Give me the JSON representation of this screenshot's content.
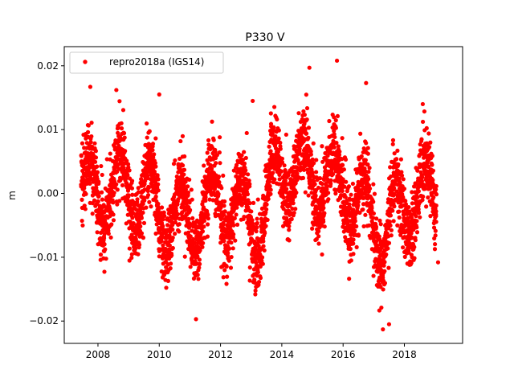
{
  "chart_data": {
    "type": "scatter",
    "title": "P330 V",
    "xlabel": "",
    "ylabel": "m",
    "xlim": [
      2006.9,
      2019.9
    ],
    "ylim": [
      -0.0235,
      0.023
    ],
    "x_ticks": [
      2008,
      2010,
      2012,
      2014,
      2016,
      2018
    ],
    "x_tick_labels": [
      "2008",
      "2010",
      "2012",
      "2014",
      "2016",
      "2018"
    ],
    "y_ticks": [
      -0.02,
      -0.01,
      0.0,
      0.01,
      0.02
    ],
    "y_tick_labels": [
      "−0.02",
      "−0.01",
      "0.00",
      "0.01",
      "0.02"
    ],
    "grid": false,
    "legend_position": "top-left",
    "series": [
      {
        "name": "repro2018a (IGS14)",
        "color": "#ff0000",
        "marker": "circle",
        "x_start": 2007.45,
        "x_end": 2019.05,
        "points_per_year": 330,
        "seasonal_amplitude": 0.0055,
        "seasonal_peak_fraction": 0.7,
        "noise_sd": 0.0028,
        "baseline_anchors": [
          [
            2007.45,
            0.0
          ],
          [
            2009.0,
            0.001
          ],
          [
            2010.3,
            -0.004
          ],
          [
            2011.0,
            -0.004
          ],
          [
            2012.0,
            -0.001
          ],
          [
            2013.3,
            -0.005
          ],
          [
            2013.9,
            0.004
          ],
          [
            2015.0,
            0.003
          ],
          [
            2016.0,
            0.001
          ],
          [
            2017.3,
            -0.006
          ],
          [
            2018.5,
            0.0
          ],
          [
            2019.05,
            -0.001
          ]
        ],
        "outliers": [
          [
            2007.75,
            0.0167
          ],
          [
            2008.6,
            0.0162
          ],
          [
            2010.0,
            0.0155
          ],
          [
            2011.2,
            -0.0197
          ],
          [
            2013.05,
            0.0145
          ],
          [
            2014.9,
            0.0197
          ],
          [
            2015.8,
            0.0208
          ],
          [
            2016.75,
            0.0173
          ],
          [
            2017.3,
            -0.0213
          ],
          [
            2017.5,
            -0.0205
          ],
          [
            2018.6,
            0.014
          ],
          [
            2019.1,
            -0.0108
          ]
        ]
      }
    ]
  }
}
